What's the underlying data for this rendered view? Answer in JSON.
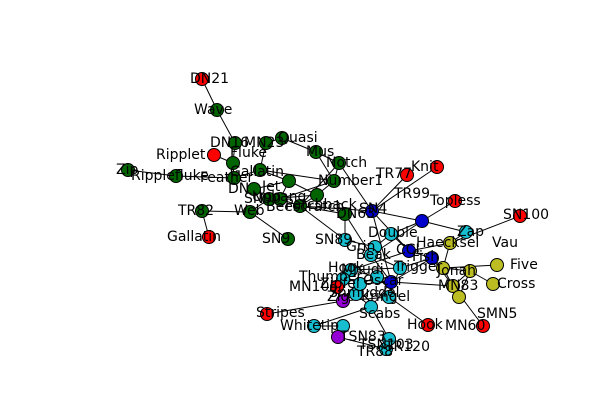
{
  "colors": {
    "red": "#ff0000",
    "green": "#006400",
    "blue": "#0000cc",
    "cyan": "#17becf",
    "yellow": "#bcbd22",
    "purple": "#9400d3"
  },
  "graph": {
    "nodes": [
      {
        "id": "n0",
        "label": "DN21",
        "group": "red"
      },
      {
        "id": "n1",
        "label": "Wave",
        "group": "green"
      },
      {
        "id": "n2",
        "label": "DN16",
        "group": "green"
      },
      {
        "id": "n3",
        "label": "MN23",
        "group": "green"
      },
      {
        "id": "n4",
        "label": "Quasi",
        "group": "green"
      },
      {
        "id": "n5",
        "label": "Ripplet",
        "group": "red"
      },
      {
        "id": "n6",
        "label": "Fluke",
        "group": "green"
      },
      {
        "id": "n7",
        "label": "Mus",
        "group": "green"
      },
      {
        "id": "n8",
        "label": "Zip",
        "group": "green"
      },
      {
        "id": "n9",
        "label": "Ripplefluke",
        "group": "green"
      },
      {
        "id": "n10",
        "label": "Feather",
        "group": "green"
      },
      {
        "id": "n11",
        "label": "Gallatin",
        "group": "green"
      },
      {
        "id": "n12",
        "label": "Notch",
        "group": "green"
      },
      {
        "id": "n13",
        "label": "Knit",
        "group": "red"
      },
      {
        "id": "n14",
        "label": "TR77",
        "group": "red"
      },
      {
        "id": "n15",
        "label": "Number1",
        "group": "green"
      },
      {
        "id": "n16",
        "label": "DN",
        "group": "green"
      },
      {
        "id": "n17",
        "label": "Jet",
        "group": "green"
      },
      {
        "id": "n18",
        "label": "Topless",
        "group": "red"
      },
      {
        "id": "n19",
        "label": "SN90",
        "group": "green"
      },
      {
        "id": "n20",
        "label": "Patchback",
        "group": "green"
      },
      {
        "id": "n21",
        "label": "Beescratch",
        "group": "green"
      },
      {
        "id": "n22",
        "label": "SN4",
        "group": "blue"
      },
      {
        "id": "n23",
        "label": "SN100",
        "group": "red"
      },
      {
        "id": "n24",
        "label": "TR82",
        "group": "green"
      },
      {
        "id": "n25",
        "label": "Web",
        "group": "green"
      },
      {
        "id": "n26",
        "label": "Upbang",
        "group": "green"
      },
      {
        "id": "n27",
        "label": "DN63",
        "group": "green"
      },
      {
        "id": "n28",
        "label": "TR99",
        "group": "blue"
      },
      {
        "id": "n29",
        "label": "Zap",
        "group": "cyan"
      },
      {
        "id": "n30",
        "label": "Double",
        "group": "cyan"
      },
      {
        "id": "n31",
        "label": "Gallatin",
        "group": "red"
      },
      {
        "id": "n32",
        "label": "SN9",
        "group": "green"
      },
      {
        "id": "n33",
        "label": "SN89",
        "group": "cyan"
      },
      {
        "id": "n34",
        "label": "Grin",
        "group": "cyan"
      },
      {
        "id": "n35",
        "label": "CCL",
        "group": "blue"
      },
      {
        "id": "n36",
        "label": "Vau",
        "group": "yellow"
      },
      {
        "id": "n37",
        "label": "Five",
        "group": "yellow"
      },
      {
        "id": "n38",
        "label": "Beak",
        "group": "cyan"
      },
      {
        "id": "n39",
        "label": "Fish",
        "group": "blue"
      },
      {
        "id": "n40",
        "label": "Haecksel",
        "group": "yellow"
      },
      {
        "id": "n41",
        "label": "Trigger",
        "group": "cyan"
      },
      {
        "id": "n42",
        "label": "Hook",
        "group": "cyan"
      },
      {
        "id": "n43",
        "label": "Thumper",
        "group": "cyan"
      },
      {
        "id": "n44",
        "label": "Oscar",
        "group": "blue"
      },
      {
        "id": "n45",
        "label": "Jonah",
        "group": "yellow"
      },
      {
        "id": "n46",
        "label": "MN83",
        "group": "yellow"
      },
      {
        "id": "n47",
        "label": "Cross",
        "group": "yellow"
      },
      {
        "id": "n48",
        "label": "MN105",
        "group": "red"
      },
      {
        "id": "n49",
        "label": "SMN5",
        "group": "yellow"
      },
      {
        "id": "n50",
        "label": "Kringel",
        "group": "cyan"
      },
      {
        "id": "n51",
        "label": "Zig",
        "group": "purple"
      },
      {
        "id": "n52",
        "label": "Shmuddel",
        "group": "cyan"
      },
      {
        "id": "n53",
        "label": "Scabs",
        "group": "cyan"
      },
      {
        "id": "n54",
        "label": "Stripes",
        "group": "red"
      },
      {
        "id": "n55",
        "label": "Whitetip",
        "group": "cyan"
      },
      {
        "id": "n56",
        "label": "Hook",
        "group": "red"
      },
      {
        "id": "n57",
        "label": "MN60",
        "group": "red"
      },
      {
        "id": "n58",
        "label": "TSN83",
        "group": "cyan"
      },
      {
        "id": "n59",
        "label": "TSN103",
        "group": "purple"
      },
      {
        "id": "n60",
        "label": "TR88",
        "group": "cyan"
      },
      {
        "id": "n61",
        "label": "TR120",
        "group": "cyan"
      },
      {
        "id": "n62",
        "label": "Mhudi",
        "group": "cyan"
      },
      {
        "id": "n63",
        "label": "Zipfel",
        "group": "cyan"
      }
    ],
    "edges": [
      [
        "n0",
        "n1"
      ],
      [
        "n1",
        "n2"
      ],
      [
        "n2",
        "n6"
      ],
      [
        "n3",
        "n4"
      ],
      [
        "n3",
        "n11"
      ],
      [
        "n4",
        "n7"
      ],
      [
        "n5",
        "n6"
      ],
      [
        "n6",
        "n10"
      ],
      [
        "n8",
        "n9"
      ],
      [
        "n9",
        "n10"
      ],
      [
        "n10",
        "n11"
      ],
      [
        "n11",
        "n15"
      ],
      [
        "n11",
        "n17"
      ],
      [
        "n7",
        "n15"
      ],
      [
        "n12",
        "n15"
      ],
      [
        "n12",
        "n22"
      ],
      [
        "n13",
        "n22"
      ],
      [
        "n14",
        "n22"
      ],
      [
        "n15",
        "n19"
      ],
      [
        "n15",
        "n20"
      ],
      [
        "n16",
        "n17"
      ],
      [
        "n16",
        "n26"
      ],
      [
        "n17",
        "n19"
      ],
      [
        "n17",
        "n20"
      ],
      [
        "n19",
        "n21"
      ],
      [
        "n20",
        "n21"
      ],
      [
        "n21",
        "n22"
      ],
      [
        "n21",
        "n27"
      ],
      [
        "n24",
        "n25"
      ],
      [
        "n25",
        "n26"
      ],
      [
        "n25",
        "n32"
      ],
      [
        "n26",
        "n20"
      ],
      [
        "n27",
        "n33"
      ],
      [
        "n22",
        "n28"
      ],
      [
        "n22",
        "n35"
      ],
      [
        "n18",
        "n28"
      ],
      [
        "n28",
        "n29"
      ],
      [
        "n28",
        "n30"
      ],
      [
        "n30",
        "n35"
      ],
      [
        "n29",
        "n36"
      ],
      [
        "n35",
        "n36"
      ],
      [
        "n35",
        "n39"
      ],
      [
        "n36",
        "n40"
      ],
      [
        "n40",
        "n37"
      ],
      [
        "n40",
        "n46"
      ],
      [
        "n39",
        "n40"
      ],
      [
        "n39",
        "n45"
      ],
      [
        "n45",
        "n46"
      ],
      [
        "n46",
        "n47"
      ],
      [
        "n46",
        "n49"
      ],
      [
        "n23",
        "n36"
      ],
      [
        "n30",
        "n34"
      ],
      [
        "n34",
        "n38"
      ],
      [
        "n38",
        "n41"
      ],
      [
        "n41",
        "n42"
      ],
      [
        "n42",
        "n43"
      ],
      [
        "n43",
        "n44"
      ],
      [
        "n44",
        "n45"
      ],
      [
        "n44",
        "n50"
      ],
      [
        "n50",
        "n51"
      ],
      [
        "n51",
        "n52"
      ],
      [
        "n52",
        "n53"
      ],
      [
        "n53",
        "n55"
      ],
      [
        "n55",
        "n58"
      ],
      [
        "n58",
        "n59"
      ],
      [
        "n59",
        "n60"
      ],
      [
        "n60",
        "n61"
      ],
      [
        "n61",
        "n53"
      ],
      [
        "n44",
        "n63"
      ],
      [
        "n63",
        "n62"
      ],
      [
        "n62",
        "n42"
      ],
      [
        "n50",
        "n56"
      ],
      [
        "n45",
        "n57"
      ],
      [
        "n54",
        "n51"
      ],
      [
        "n48",
        "n43"
      ],
      [
        "n33",
        "n34"
      ],
      [
        "n27",
        "n38"
      ],
      [
        "n41",
        "n39"
      ],
      [
        "n42",
        "n35"
      ],
      [
        "n38",
        "n44"
      ],
      [
        "n50",
        "n41"
      ],
      [
        "n53",
        "n44"
      ],
      [
        "n63",
        "n52"
      ],
      [
        "n31",
        "n24"
      ],
      [
        "n21",
        "n33"
      ],
      [
        "n28",
        "n38"
      ],
      [
        "n22",
        "n44"
      ],
      [
        "n39",
        "n44"
      ],
      [
        "n40",
        "n45"
      ],
      [
        "n12",
        "n21"
      ],
      [
        "n7",
        "n12"
      ]
    ]
  }
}
